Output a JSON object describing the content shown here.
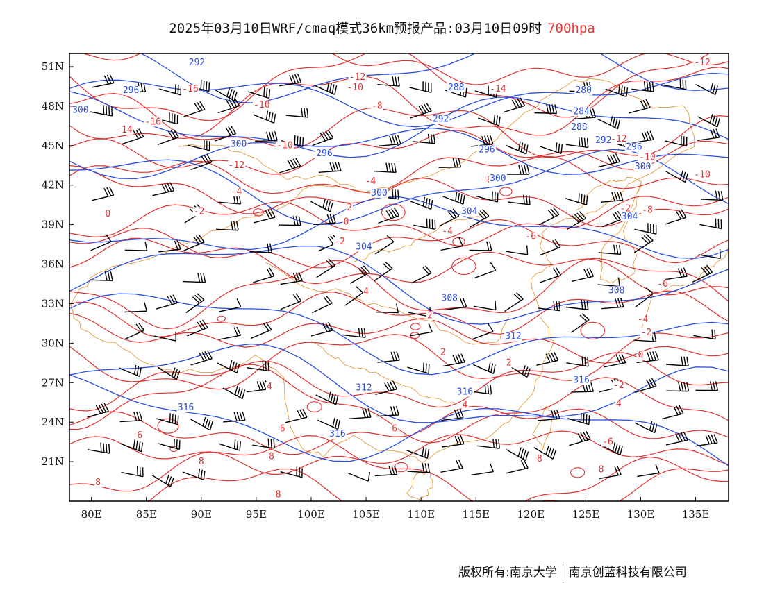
{
  "title": {
    "main": "2025年03月10日WRF/cmaq模式36km预报产品:03月10日09时",
    "level": "700hpa"
  },
  "footer": {
    "copyright": "版权所有:南京大学",
    "company": "南京创蓝科技有限公司"
  },
  "colors": {
    "temperature_contour": "#e03030",
    "height_contour": "#2a4ee0",
    "border": "#e0902a",
    "wind_barb": "#000000"
  },
  "map": {
    "lon_range": [
      78,
      138
    ],
    "lat_range": [
      18,
      52
    ],
    "x_ticks": [
      "80E",
      "85E",
      "90E",
      "95E",
      "100E",
      "105E",
      "110E",
      "115E",
      "120E",
      "125E",
      "130E",
      "135E"
    ],
    "x_tick_values": [
      80,
      85,
      90,
      95,
      100,
      105,
      110,
      115,
      120,
      125,
      130,
      135
    ],
    "y_ticks": [
      "51N",
      "48N",
      "45N",
      "42N",
      "39N",
      "36N",
      "33N",
      "30N",
      "27N",
      "24N",
      "21N"
    ],
    "y_tick_values": [
      51,
      48,
      45,
      42,
      39,
      36,
      33,
      30,
      27,
      24,
      21
    ],
    "temperature_labels": [
      {
        "text": "-12",
        "lon": 104.2,
        "lat": 50.0
      },
      {
        "text": "-12",
        "lon": 135.6,
        "lat": 51.1
      },
      {
        "text": "-10",
        "lon": 104.0,
        "lat": 49.2
      },
      {
        "text": "-14",
        "lon": 117.0,
        "lat": 49.1
      },
      {
        "text": "-16",
        "lon": 89.0,
        "lat": 49.1
      },
      {
        "text": "-10",
        "lon": 95.5,
        "lat": 47.9
      },
      {
        "text": "-8",
        "lon": 106.0,
        "lat": 47.8
      },
      {
        "text": "-14",
        "lon": 83.0,
        "lat": 46.0
      },
      {
        "text": "-16",
        "lon": 85.6,
        "lat": 46.6
      },
      {
        "text": "-10",
        "lon": 97.6,
        "lat": 44.8
      },
      {
        "text": "-12",
        "lon": 93.2,
        "lat": 43.3
      },
      {
        "text": "-12",
        "lon": 128.0,
        "lat": 45.3
      },
      {
        "text": "-10",
        "lon": 130.6,
        "lat": 43.9
      },
      {
        "text": "-10",
        "lon": 135.6,
        "lat": 42.6
      },
      {
        "text": "-8",
        "lon": 116.0,
        "lat": 42.2
      },
      {
        "text": "-4",
        "lon": 105.4,
        "lat": 42.1
      },
      {
        "text": "-4",
        "lon": 93.2,
        "lat": 41.3
      },
      {
        "text": "-2",
        "lon": 89.8,
        "lat": 39.8
      },
      {
        "text": "0",
        "lon": 81.5,
        "lat": 39.6
      },
      {
        "text": "2",
        "lon": 103.5,
        "lat": 40.1
      },
      {
        "text": "0",
        "lon": 103.2,
        "lat": 39.0
      },
      {
        "text": "-2",
        "lon": 102.6,
        "lat": 37.5
      },
      {
        "text": "-4",
        "lon": 112.4,
        "lat": 38.3
      },
      {
        "text": "-6",
        "lon": 120.0,
        "lat": 37.9
      },
      {
        "text": "-8",
        "lon": 130.6,
        "lat": 39.9
      },
      {
        "text": "-2",
        "lon": 128.6,
        "lat": 40.0
      },
      {
        "text": "-6",
        "lon": 132.0,
        "lat": 34.3
      },
      {
        "text": "-4",
        "lon": 130.2,
        "lat": 31.6
      },
      {
        "text": "-2",
        "lon": 130.5,
        "lat": 30.6
      },
      {
        "text": "0",
        "lon": 130.0,
        "lat": 28.9
      },
      {
        "text": "-2",
        "lon": 128.0,
        "lat": 26.6
      },
      {
        "text": "4",
        "lon": 128.0,
        "lat": 25.2
      },
      {
        "text": "-6",
        "lon": 127.0,
        "lat": 22.3
      },
      {
        "text": "8",
        "lon": 126.4,
        "lat": 20.2
      },
      {
        "text": "4",
        "lon": 105.0,
        "lat": 33.7
      },
      {
        "text": "2",
        "lon": 110.8,
        "lat": 31.9
      },
      {
        "text": "2",
        "lon": 112.0,
        "lat": 29.1
      },
      {
        "text": "2",
        "lon": 118.0,
        "lat": 28.3
      },
      {
        "text": "4",
        "lon": 96.2,
        "lat": 26.5
      },
      {
        "text": "4",
        "lon": 114.0,
        "lat": 25.1
      },
      {
        "text": "6",
        "lon": 97.4,
        "lat": 23.3
      },
      {
        "text": "8",
        "lon": 90.0,
        "lat": 20.8
      },
      {
        "text": "6",
        "lon": 84.4,
        "lat": 22.8
      },
      {
        "text": "8",
        "lon": 80.6,
        "lat": 19.2
      },
      {
        "text": "8",
        "lon": 96.4,
        "lat": 21.2
      },
      {
        "text": "6",
        "lon": 107.6,
        "lat": 23.3
      },
      {
        "text": "8",
        "lon": 97.0,
        "lat": 18.3
      },
      {
        "text": "8",
        "lon": 120.8,
        "lat": 21.0
      }
    ],
    "height_labels": [
      {
        "text": "292",
        "lon": 89.6,
        "lat": 51.1
      },
      {
        "text": "296",
        "lon": 83.6,
        "lat": 49.0
      },
      {
        "text": "288",
        "lon": 113.2,
        "lat": 49.2
      },
      {
        "text": "280",
        "lon": 124.8,
        "lat": 49.0
      },
      {
        "text": "300",
        "lon": 79.0,
        "lat": 47.5
      },
      {
        "text": "292",
        "lon": 111.8,
        "lat": 46.8
      },
      {
        "text": "284",
        "lon": 124.6,
        "lat": 47.4
      },
      {
        "text": "288",
        "lon": 124.4,
        "lat": 46.2
      },
      {
        "text": "292",
        "lon": 126.6,
        "lat": 45.2
      },
      {
        "text": "296",
        "lon": 129.4,
        "lat": 44.7
      },
      {
        "text": "300",
        "lon": 93.4,
        "lat": 44.9
      },
      {
        "text": "296",
        "lon": 101.2,
        "lat": 44.2
      },
      {
        "text": "296",
        "lon": 116.0,
        "lat": 44.5
      },
      {
        "text": "300",
        "lon": 130.2,
        "lat": 43.2
      },
      {
        "text": "300",
        "lon": 117.0,
        "lat": 42.3
      },
      {
        "text": "300",
        "lon": 106.2,
        "lat": 41.2
      },
      {
        "text": "304",
        "lon": 114.4,
        "lat": 39.8
      },
      {
        "text": "304",
        "lon": 129.0,
        "lat": 39.4
      },
      {
        "text": "304",
        "lon": 104.8,
        "lat": 37.1
      },
      {
        "text": "308",
        "lon": 112.6,
        "lat": 33.2
      },
      {
        "text": "308",
        "lon": 127.8,
        "lat": 33.8
      },
      {
        "text": "312",
        "lon": 118.4,
        "lat": 30.3
      },
      {
        "text": "312",
        "lon": 104.8,
        "lat": 26.4
      },
      {
        "text": "316",
        "lon": 114.0,
        "lat": 26.1
      },
      {
        "text": "316",
        "lon": 124.6,
        "lat": 27.0
      },
      {
        "text": "316",
        "lon": 88.6,
        "lat": 24.9
      },
      {
        "text": "316",
        "lon": 102.4,
        "lat": 22.9
      }
    ]
  }
}
